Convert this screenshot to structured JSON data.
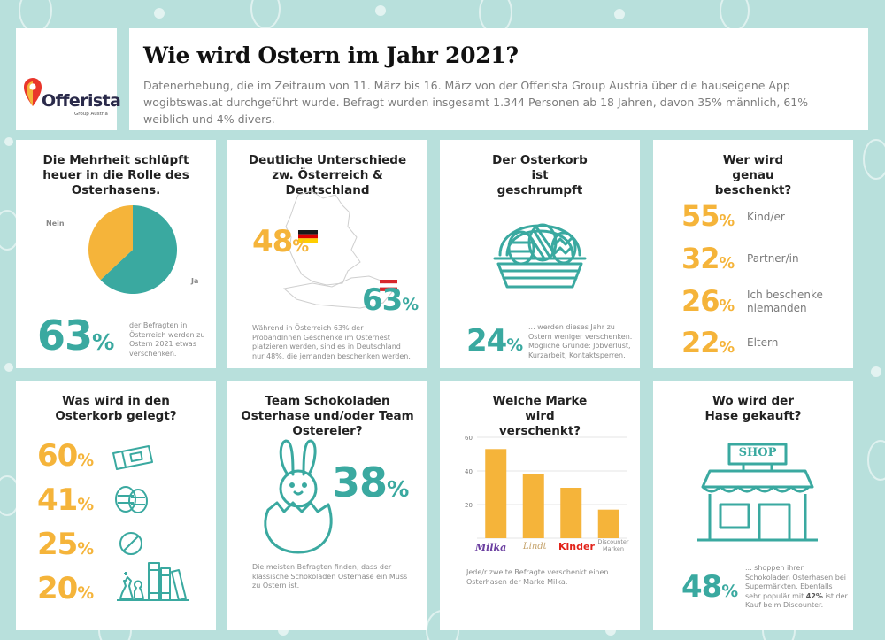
{
  "header": {
    "title": "Wie wird Ostern im Jahr 2021?",
    "subtitle": "Datenerhebung, die im Zeitraum von 11. März bis 16. März von der Offerista Group Austria über die hauseigene App wogibtswas.at durchgeführt wurde. Befragt wurden insgesamt 1.344 Personen ab 18 Jahren, davon 35% männlich, 61% weiblich und 4% divers."
  },
  "logo": {
    "name": "Offerista",
    "tagline": "Group Austria",
    "icon": "map-pin-icon"
  },
  "panels": {
    "p1": {
      "title": "Die Mehrheit schlüpft heuer in die Rolle des Osterhasens.",
      "pie_label_no": "Nein",
      "pie_label_yes": "Ja",
      "value": "63",
      "unit": "%",
      "note": "der Befragten in Österreich werden zu Ostern 2021 etwas verschenken."
    },
    "p2": {
      "title": "Deutliche Unterschiede zw. Österreich & Deutschland",
      "value_de": "48",
      "value_at": "63",
      "unit": "%",
      "note": "Während in Österreich 63% der ProbandInnen Geschenke im Osternest platzieren werden, sind es in Deutschland nur 48%, die jemanden beschenken werden."
    },
    "p3": {
      "title": "Der Osterkorb ist geschrumpft",
      "value": "24",
      "unit": "%",
      "note": "... werden dieses Jahr zu Ostern weniger verschenken. Mögliche Gründe: Jobverlust, Kurzarbeit, Kontaktsperren."
    },
    "p4": {
      "title": "Wer wird genau beschenkt?",
      "rows": [
        {
          "value": "55",
          "label": "Kind/er"
        },
        {
          "value": "32",
          "label": "Partner/in"
        },
        {
          "value": "26",
          "label": "Ich beschenke niemanden"
        },
        {
          "value": "22",
          "label": "Eltern"
        }
      ],
      "unit": "%"
    },
    "p5": {
      "title": "Was wird in den Osterkorb gelegt?",
      "rows": [
        {
          "value": "60",
          "icon": "voucher-icon"
        },
        {
          "value": "41",
          "icon": "easter-eggs-icon"
        },
        {
          "value": "25",
          "icon": "none-icon"
        },
        {
          "value": "20",
          "icon": "games-books-icon"
        }
      ],
      "unit": "%"
    },
    "p6": {
      "title": "Team Schokoladen Osterhase und/oder Team Ostereier?",
      "value": "38",
      "unit": "%",
      "note": "Die meisten Befragten finden, dass der klassische Schokoladen Osterhase ein Muss zu Ostern ist."
    },
    "p7": {
      "title": "Welche Marke wird verschenkt?",
      "note": "Jede/r zweite Befragte verschenkt einen Osterhasen der Marke Milka."
    },
    "p8": {
      "title": "Wo wird der Hase gekauft?",
      "shop_sign": "SHOP",
      "value": "48",
      "unit": "%",
      "note_pre": "... shoppen ihren Schokoladen Osterhasen bei Supermärkten. Ebenfalls sehr populär mit ",
      "note_bold": "42%",
      "note_post": " ist der Kauf beim Discounter."
    }
  },
  "chart_data": [
    {
      "type": "pie",
      "categories": [
        "Ja",
        "Nein"
      ],
      "values": [
        63,
        37
      ],
      "colors": [
        "#3aa9a0",
        "#f5b43a"
      ]
    },
    {
      "type": "bar",
      "categories": [
        "Milka",
        "Lindt",
        "Kinder",
        "Discounter Marken"
      ],
      "values": [
        53,
        38,
        30,
        17
      ],
      "ylim": [
        0,
        60
      ],
      "yticks": [
        0,
        20,
        40,
        60
      ],
      "color": "#f5b43a",
      "grid": true
    }
  ],
  "colors": {
    "teal": "#3aa9a0",
    "orange": "#f5b43a",
    "background": "#b8e0dc"
  }
}
